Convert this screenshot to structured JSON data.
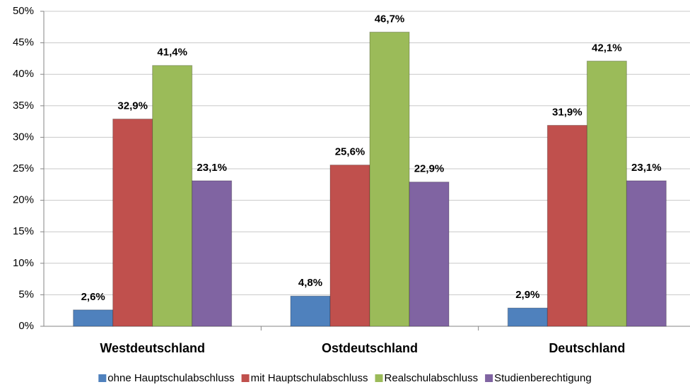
{
  "chart_data": {
    "type": "bar",
    "categories": [
      "Westdeutschland",
      "Ostdeutschland",
      "Deutschland"
    ],
    "series": [
      {
        "name": "ohne Hauptschulabschluss",
        "color": "#4f81bd",
        "values": [
          2.6,
          4.8,
          2.9
        ],
        "value_labels": [
          "2,6%",
          "4,8%",
          "2,9%"
        ]
      },
      {
        "name": "mit Hauptschulabschluss",
        "color": "#c0504d",
        "values": [
          32.9,
          25.6,
          31.9
        ],
        "value_labels": [
          "32,9%",
          "25,6%",
          "31,9%"
        ]
      },
      {
        "name": "Realschulabschluss",
        "color": "#9bbb59",
        "values": [
          41.4,
          46.7,
          42.1
        ],
        "value_labels": [
          "41,4%",
          "46,7%",
          "42,1%"
        ]
      },
      {
        "name": "Studienberechtigung",
        "color": "#8064a2",
        "values": [
          23.1,
          22.9,
          23.1
        ],
        "value_labels": [
          "23,1%",
          "22,9%",
          "23,1%"
        ]
      }
    ],
    "ylim": [
      0,
      50
    ],
    "yticks": [
      {
        "value": 0,
        "label": "0%"
      },
      {
        "value": 5,
        "label": "5%"
      },
      {
        "value": 10,
        "label": "10%"
      },
      {
        "value": 15,
        "label": "15%"
      },
      {
        "value": 20,
        "label": "20%"
      },
      {
        "value": 25,
        "label": "25%"
      },
      {
        "value": 30,
        "label": "30%"
      },
      {
        "value": 35,
        "label": "35%"
      },
      {
        "value": 40,
        "label": "40%"
      },
      {
        "value": 45,
        "label": "45%"
      },
      {
        "value": 50,
        "label": "50%"
      }
    ],
    "grid": true
  }
}
